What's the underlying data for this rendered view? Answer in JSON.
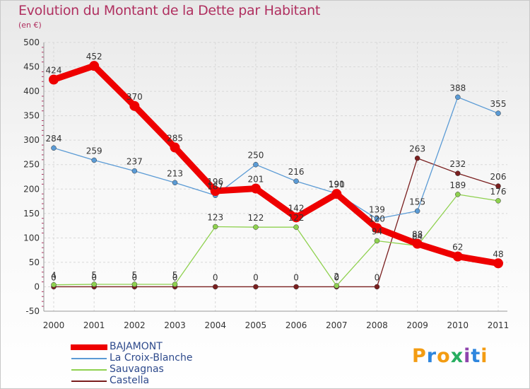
{
  "header": {
    "title": "Evolution du Montant de la Dette par Habitant",
    "subtitle": "(en €)"
  },
  "logo": {
    "text": "Proxiti",
    "letter_colors": [
      "#f39c12",
      "#2e86de",
      "#f39c12",
      "#27ae60",
      "#8e44ad",
      "#2e86de",
      "#f39c12"
    ]
  },
  "chart_data": {
    "type": "line",
    "title": "Evolution du Montant de la Dette par Habitant",
    "subtitle": "(en €)",
    "xlabel": "",
    "ylabel": "",
    "x": [
      "2000",
      "2001",
      "2002",
      "2003",
      "2004",
      "2005",
      "2006",
      "2007",
      "2008",
      "2009",
      "2010",
      "2011"
    ],
    "ylim": [
      -50,
      500
    ],
    "yticks": [
      "-50",
      "0",
      "50",
      "100",
      "150",
      "200",
      "250",
      "300",
      "350",
      "400",
      "450",
      "500"
    ],
    "grid": true,
    "legend_position": "bottom-left",
    "series": [
      {
        "name": "BAJAMONT",
        "color": "#ee0000",
        "values": [
          424,
          452,
          370,
          285,
          196,
          201,
          142,
          190,
          120,
          88,
          62,
          48
        ],
        "labels": [
          "424",
          "452",
          "370",
          "285",
          "196",
          "201",
          "142",
          "190",
          "120",
          "88",
          "62",
          "48"
        ]
      },
      {
        "name": "La Croix-Blanche",
        "color": "#5b9bd5",
        "values": [
          284,
          259,
          237,
          213,
          187,
          250,
          216,
          191,
          139,
          155,
          388,
          355
        ],
        "labels": [
          "284",
          "259",
          "237",
          "213",
          "187",
          "250",
          "216",
          "191",
          "139",
          "155",
          "388",
          "355"
        ]
      },
      {
        "name": "Sauvagnas",
        "color": "#8fd14f",
        "values": [
          4,
          5,
          5,
          5,
          123,
          122,
          122,
          2,
          94,
          84,
          189,
          176
        ],
        "labels": [
          "4",
          "5",
          "5",
          "5",
          "123",
          "122",
          "122",
          "2",
          "94",
          "84",
          "189",
          "176"
        ]
      },
      {
        "name": "Castella",
        "color": "#7a1f1f",
        "values": [
          0,
          0,
          0,
          0,
          0,
          0,
          0,
          0,
          0,
          263,
          232,
          206
        ],
        "labels": [
          "0",
          "0",
          "0",
          "0",
          "0",
          "0",
          "0",
          "0",
          "0",
          "263",
          "232",
          "206"
        ]
      }
    ]
  }
}
